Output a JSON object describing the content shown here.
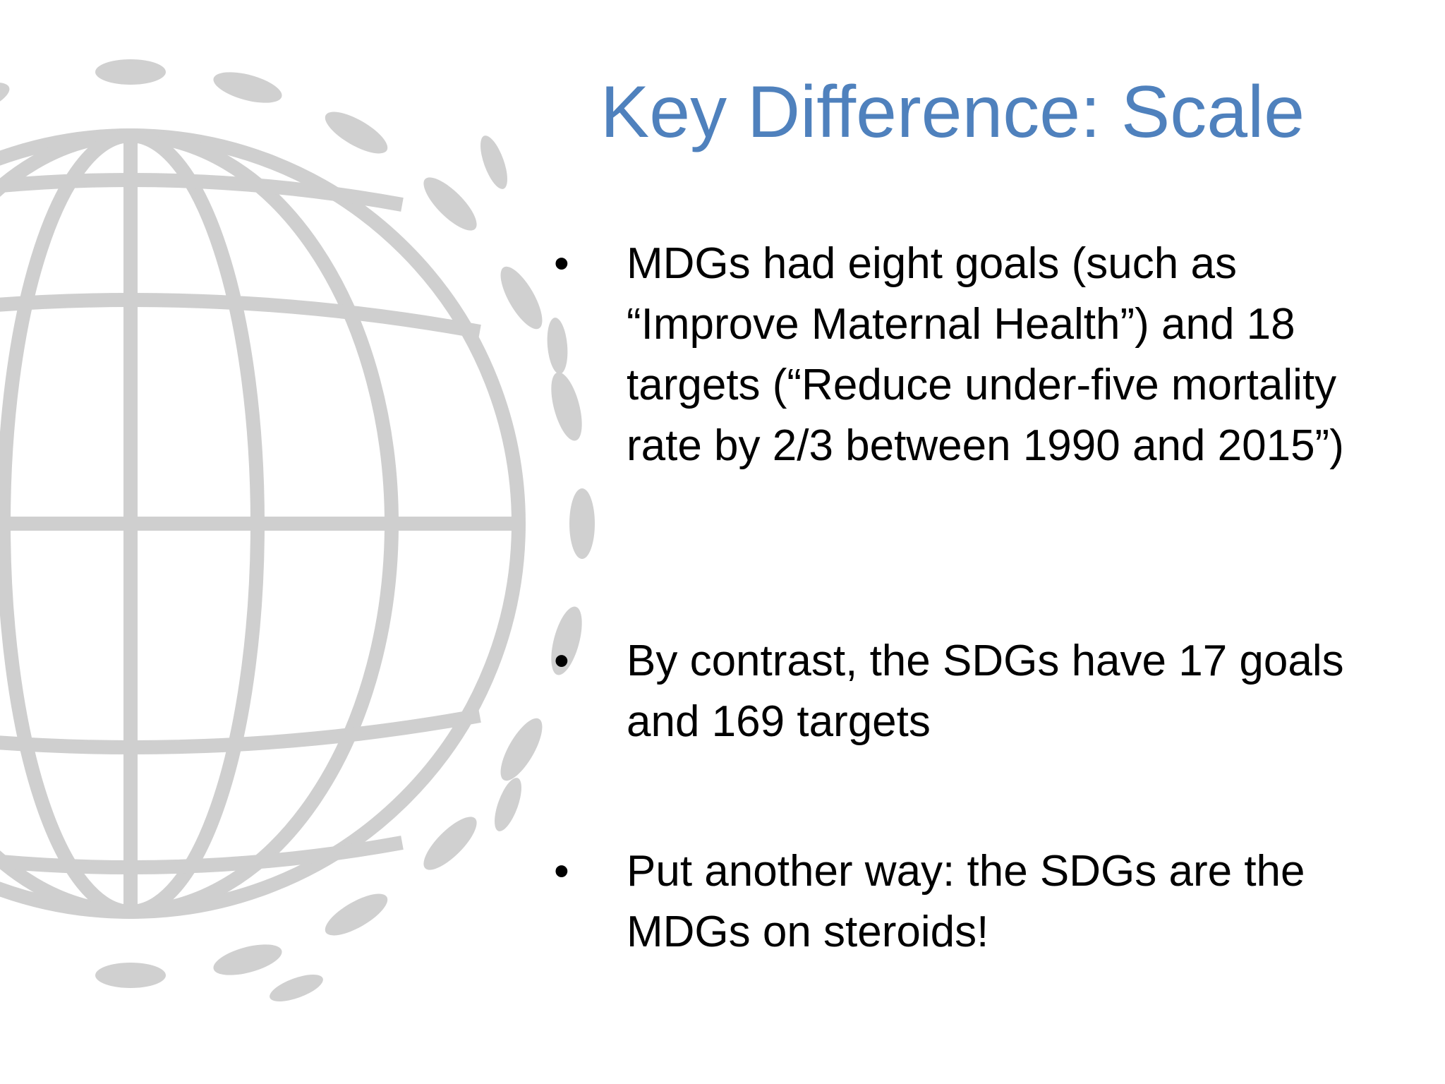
{
  "slide": {
    "title": "Key Difference: Scale",
    "bullets": [
      "MDGs had eight goals (such as “Improve Maternal Health”) and 18 targets (“Reduce under-five mortality rate by 2/3 between 1990 and 2015”)",
      "By contrast, the SDGs have 17 goals and 169 targets",
      "Put another way: the SDGs are the MDGs on steroids!"
    ]
  }
}
